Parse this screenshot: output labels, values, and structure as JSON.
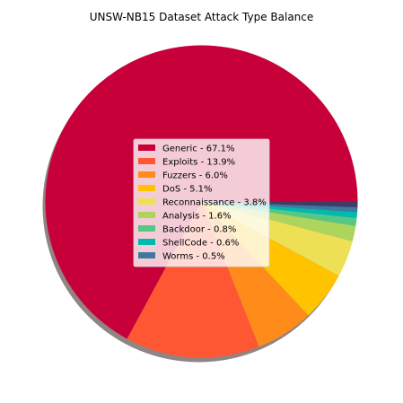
{
  "chart_data": {
    "type": "pie",
    "title": "UNSW-NB15 Dataset Attack Type Balance",
    "start_angle_deg": 0,
    "direction": "counterclockwise",
    "shadow": true,
    "legend_position": "center",
    "slices": [
      {
        "name": "Generic",
        "label": "Generic - 67.1%",
        "value": 67.1,
        "color": "#c7003a"
      },
      {
        "name": "Exploits",
        "label": "Exploits - 13.9%",
        "value": 13.9,
        "color": "#ff5733"
      },
      {
        "name": "Fuzzers",
        "label": "Fuzzers - 6.0%",
        "value": 6.0,
        "color": "#ff8c1a"
      },
      {
        "name": "DoS",
        "label": "DoS - 5.1%",
        "value": 5.1,
        "color": "#ffc300"
      },
      {
        "name": "Reconnaissance",
        "label": "Reconnaissance - 3.8%",
        "value": 3.8,
        "color": "#ede054"
      },
      {
        "name": "Analysis",
        "label": "Analysis - 1.6%",
        "value": 1.6,
        "color": "#add45c"
      },
      {
        "name": "Backdoor",
        "label": "Backdoor - 0.8%",
        "value": 0.8,
        "color": "#57c785"
      },
      {
        "name": "ShellCode",
        "label": "ShellCode - 0.6%",
        "value": 0.6,
        "color": "#00baad"
      },
      {
        "name": "Worms",
        "label": "Worms - 0.5%",
        "value": 0.5,
        "color": "#3d7a9e"
      },
      {
        "name": "",
        "label": "",
        "value": 0.6,
        "color": "#3d3d6b"
      }
    ]
  }
}
